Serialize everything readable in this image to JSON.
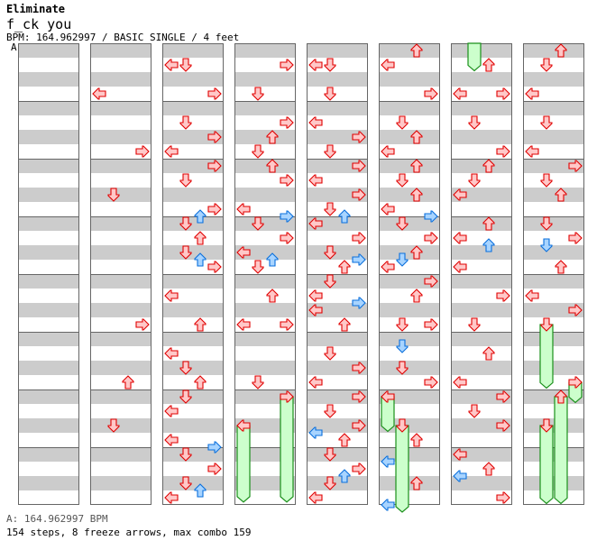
{
  "header": {
    "title": "Eliminate",
    "subtitle": "f_ck you",
    "info": "BPM: 164.962997 / BASIC SINGLE / 4 feet",
    "bpm_marker": "A"
  },
  "footer": {
    "bpm": "A: 164.962997 BPM",
    "stats": "154 steps, 8 freeze arrows, max combo 159"
  },
  "colors": {
    "note_fill": "#ffc8c8",
    "note_stroke": "#e00000",
    "eighth_fill": "#a8d4ff",
    "eighth_stroke": "#0a6fdc",
    "freeze_fill": "#ccffcc",
    "freeze_stroke": "#1a8f1a",
    "stripe": "#cccccc",
    "border": "#666666",
    "marker_line": "#1a6fd6"
  },
  "chart_data": {
    "type": "step-chart",
    "beats_per_column": 32,
    "beats_per_measure": 4,
    "lanes": [
      "L",
      "D",
      "U",
      "R"
    ],
    "columns": [
      {
        "notes": [],
        "freezes": []
      },
      {
        "notes": [
          "3:L",
          "7:R",
          "10:D",
          "19:R",
          "23:U",
          "26:D"
        ],
        "freezes": []
      },
      {
        "notes": [
          "1:LD",
          "3:R",
          "5:D",
          "6:R",
          "7:L",
          "8:R",
          "9:D",
          "11:R",
          "11.5:U:b",
          "12:D",
          "13:U",
          "14:D",
          "14.5:U:b",
          "15:R",
          "17:L",
          "19:U",
          "21:L",
          "22:D",
          "23:U",
          "24:D",
          "25:L",
          "27:L",
          "27.5:R:b",
          "28:D",
          "29:R",
          "30:D",
          "30.5:U:b",
          "31:L"
        ],
        "freezes": []
      },
      {
        "notes": [
          "1:R",
          "3:D",
          "5:R",
          "6:U",
          "7:D",
          "8:U",
          "9:R",
          "11:L",
          "11.5:R:b",
          "12:D",
          "13:R",
          "14:L",
          "14.5:U:b",
          "15:D",
          "17:U",
          "19:LR",
          "23:D",
          "24:R",
          "26:L"
        ],
        "freezes": [
          [
            24,
            31.3,
            "R"
          ],
          [
            26,
            31.3,
            "L"
          ]
        ]
      },
      {
        "notes": [
          "1:LD",
          "3:D",
          "5:L",
          "6:R",
          "7:D",
          "8:R",
          "9:L",
          "10:R",
          "11:D",
          "11.5:U:b",
          "12:L",
          "13:R",
          "14:D",
          "14.5:R:b",
          "15:U",
          "16:D",
          "17:L",
          "17.5:R:b",
          "18:L",
          "19:U",
          "21:D",
          "22:R",
          "23:L",
          "24:R",
          "25:D",
          "26:R",
          "26.5:L:b",
          "27:U",
          "28:D",
          "29:R",
          "29.5:U:b",
          "30:D",
          "31:L"
        ],
        "freezes": []
      },
      {
        "notes": [
          "0:U",
          "1:L",
          "3:R",
          "5:D",
          "6:U",
          "7:L",
          "8:U",
          "9:D",
          "10:U",
          "11:L",
          "11.5:R:b",
          "12:D",
          "13:R",
          "14:U",
          "14.5:D:b",
          "15:L",
          "16:R",
          "17:U",
          "19:DR",
          "20.5:D:b",
          "22:D",
          "23:R",
          "24:L",
          "26:D",
          "27:U",
          "28.5:L:b",
          "30:U",
          "31.5:L:b"
        ],
        "freezes": [
          [
            24,
            26.4,
            "L"
          ],
          [
            26,
            32,
            "D"
          ]
        ]
      },
      {
        "notes": [
          "1:U",
          "3:LR",
          "5:D",
          "7:R",
          "8:U",
          "9:D",
          "10:L",
          "12:U",
          "13:L",
          "13.5:U:b",
          "15:L",
          "17:R",
          "19:D",
          "21:U",
          "23:L",
          "24:R",
          "25:D",
          "26:R",
          "28:L",
          "29:U",
          "29.5:L:b",
          "31:R"
        ],
        "freezes": [
          [
            -0.5,
            1.4,
            "D"
          ]
        ]
      },
      {
        "notes": [
          "0:U",
          "1:D",
          "3:L",
          "5:D",
          "7:L",
          "8:R",
          "9:D",
          "10:U",
          "12:D",
          "13:R",
          "13.5:D:b",
          "15:U",
          "17:L",
          "18:R",
          "19:D",
          "23:R",
          "24:U",
          "26:D"
        ],
        "freezes": [
          [
            19,
            23.4,
            "D"
          ],
          [
            23,
            24.4,
            "R"
          ],
          [
            24,
            31.4,
            "U"
          ],
          [
            26,
            31.4,
            "D"
          ]
        ]
      }
    ]
  }
}
